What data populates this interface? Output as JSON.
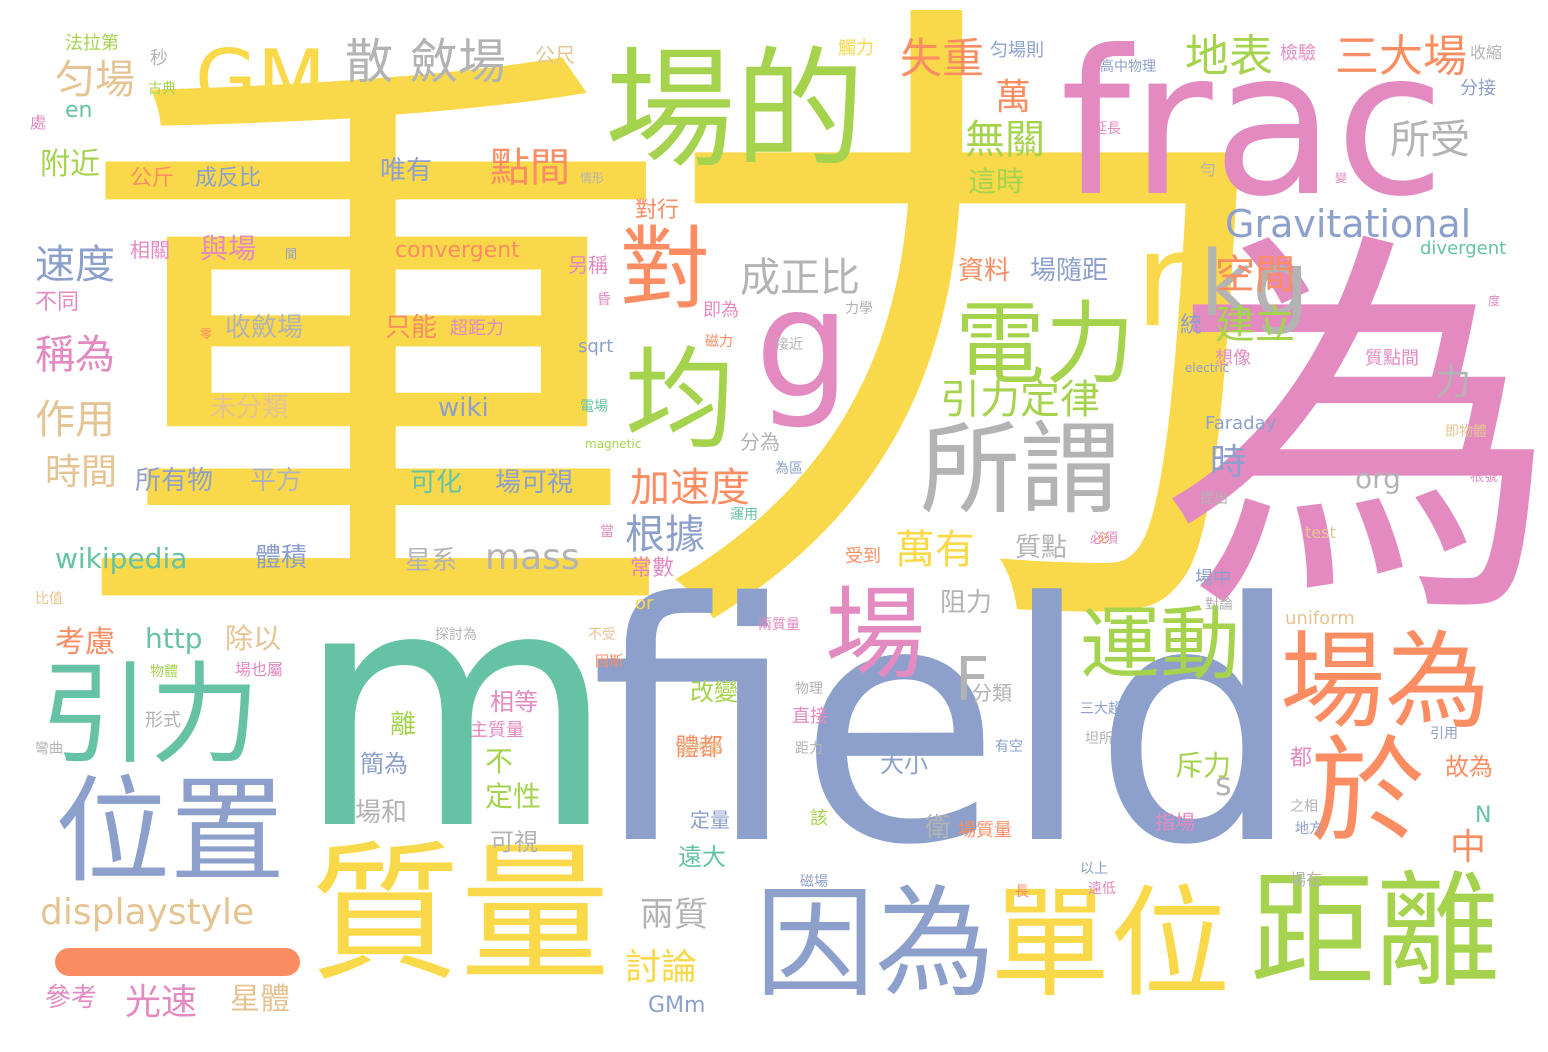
{
  "colors": {
    "yellow": "#f9d84a",
    "pink": "#e38ac1",
    "green": "#a6d34e",
    "teal": "#66c2a5",
    "blue": "#8da0cb",
    "orange": "#fc8d62",
    "tan": "#e5c494",
    "gray": "#b3b3b3",
    "background": "#ffffff"
  },
  "words": [
    "重",
    "力",
    "為",
    "m",
    "field",
    "frac",
    "場的",
    "質量",
    "距離",
    "單位",
    "因為",
    "於",
    "場為",
    "引力",
    "位置",
    "場",
    "均",
    "g",
    "所謂",
    "電力",
    "r",
    "kg",
    "對",
    "GM",
    "運動",
    "F",
    "Gravitational",
    "散",
    "斂場",
    "三大場",
    "地表",
    "失重",
    "匀場",
    "無關",
    "點間",
    "所受",
    "空間",
    "建立",
    "成正比",
    "引力定律",
    "加速度",
    "萬有",
    "根據",
    "速度",
    "稱為",
    "作用",
    "時間",
    "附近",
    "mass",
    "displaystyle",
    "wikipedia",
    "http",
    "除以",
    "光速",
    "星體",
    "參考",
    "考慮",
    "兩質",
    "討論",
    "GMm",
    "時",
    "org",
    "s",
    "中",
    "N",
    "力",
    "萬",
    "這時",
    "資料",
    "場隨距",
    "唯有",
    "成反比",
    "公斤",
    "與場",
    "相關",
    "不同",
    "只能",
    "超距力",
    "收斂場",
    "未分類",
    "wiki",
    "可化",
    "場可視",
    "所有物",
    "平方",
    "體積",
    "星系",
    "質點",
    "阻力",
    "常數",
    "or",
    "受到",
    "convergent",
    "divergent",
    "uniform",
    "Faraday",
    "test",
    "en",
    "法拉第",
    "公尺",
    "秒",
    "古典",
    "觸力",
    "匀場則",
    "高中物理",
    "檢驗",
    "收縮",
    "分接",
    "electric",
    "magnetic",
    "sqrt",
    "改變",
    "體都",
    "相等",
    "離",
    "主質量",
    "簡為",
    "不",
    "定性",
    "場和",
    "可視",
    "遠大",
    "指場",
    "斥力",
    "故為",
    "分類",
    "衛",
    "場質量",
    "大小",
    "直接",
    "距力",
    "定量",
    "該",
    "磁場",
    "長",
    "以上",
    "遠低",
    "場在",
    "引用",
    "地方",
    "之相",
    "都",
    "彎曲",
    "形式",
    "物體",
    "場也屬",
    "物理",
    "三大超",
    "坦所",
    "有空",
    "探討為",
    "不受",
    "因斯",
    "延長",
    "處",
    "另稱",
    "即為",
    "力學",
    "磁力",
    "接近",
    "想像",
    "質點間",
    "即物體",
    "根號",
    "提出",
    "為區",
    "運用",
    "必須",
    "比值",
    "場中",
    "對論",
    "分為",
    "電場",
    "當物體",
    "統",
    "對行",
    "情形",
    "間",
    "昏",
    "零",
    "度",
    "變",
    "勻",
    "兩質量",
    "必",
    "當"
  ]
}
